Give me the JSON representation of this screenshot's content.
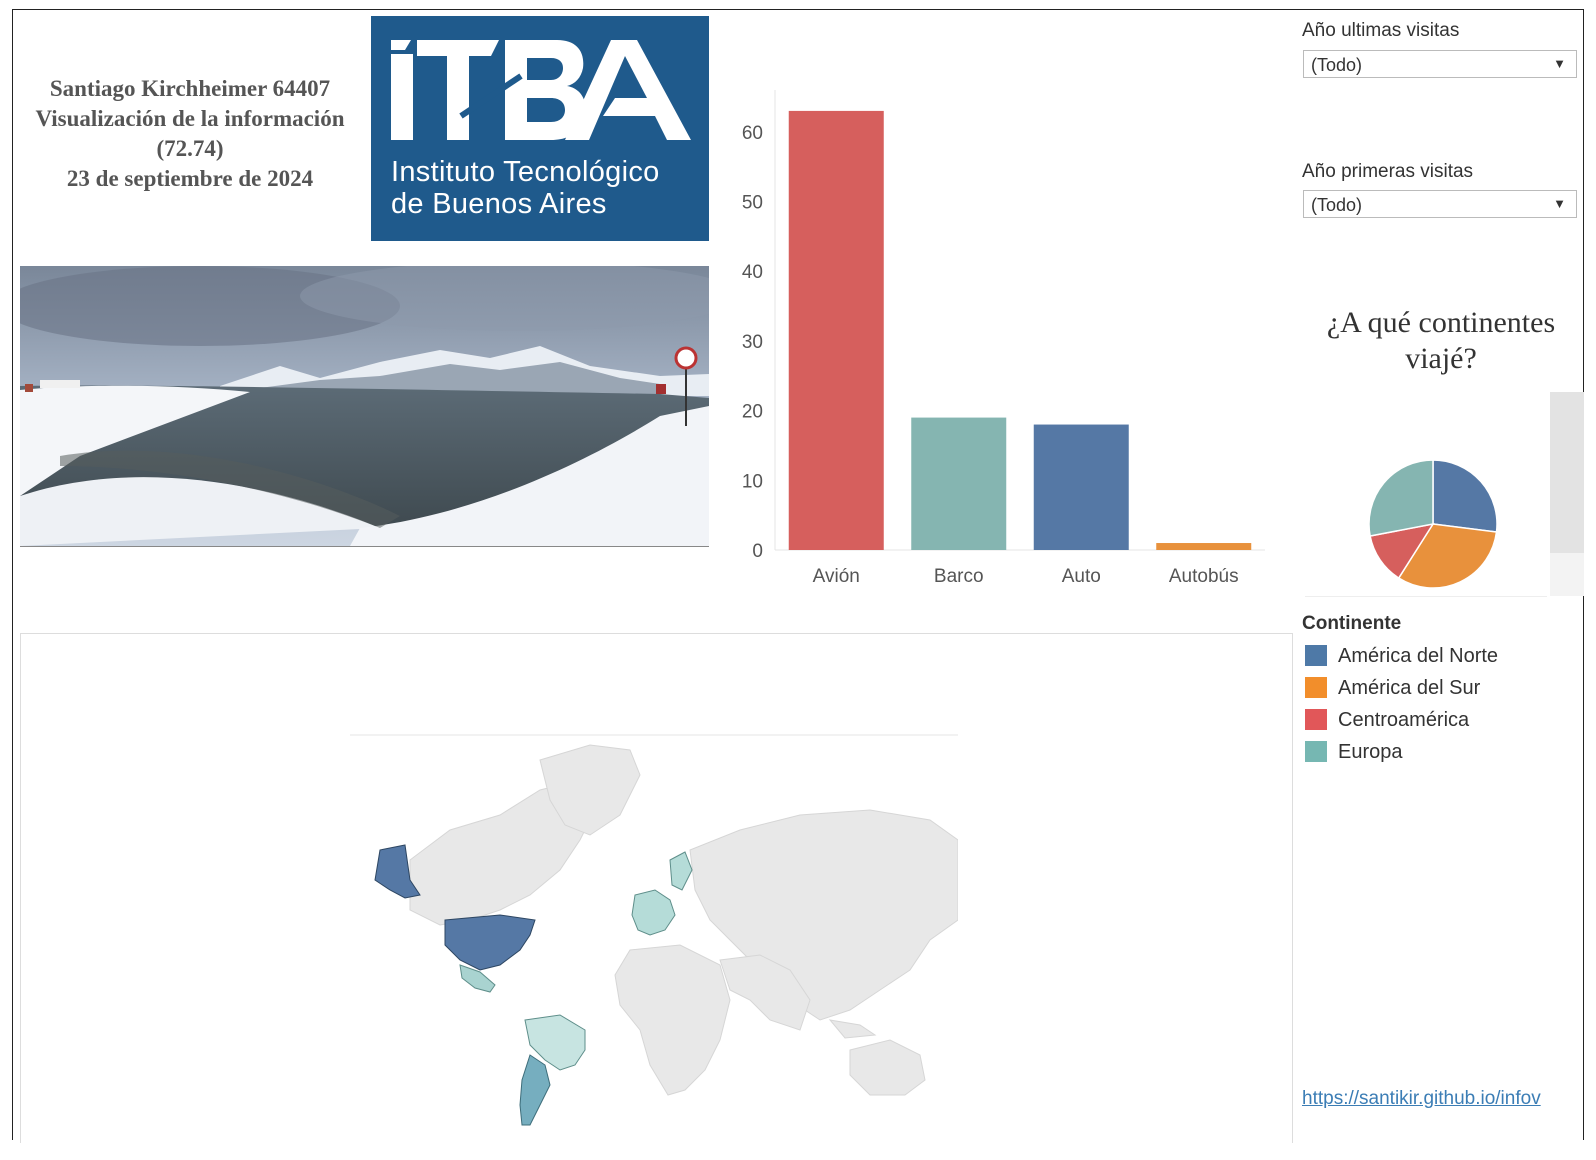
{
  "header": {
    "line1": "Santiago Kirchheimer 64407",
    "line2": "Visualización de la información",
    "line3": "(72.74)",
    "line4": "23 de septiembre de 2024"
  },
  "logo": {
    "brand": "ITBA",
    "subtitle_line1": "Instituto Tecnológico",
    "subtitle_line2": "de Buenos Aires",
    "background": "#1f5a8c"
  },
  "filters": {
    "last_visits": {
      "label": "Año ultimas visitas",
      "value": "(Todo)"
    },
    "first_visits": {
      "label": "Año primeras visitas",
      "value": "(Todo)"
    }
  },
  "pie_title": "¿A qué continentes viajé?",
  "legend": {
    "title": "Continente",
    "items": [
      {
        "label": "América del Norte",
        "color": "#4e79a7"
      },
      {
        "label": "América del Sur",
        "color": "#f28e2b"
      },
      {
        "label": "Centroamérica",
        "color": "#e15759"
      },
      {
        "label": "Europa",
        "color": "#76b7b2"
      }
    ]
  },
  "link_text": "https://santikir.github.io/infov",
  "chart_data": [
    {
      "type": "bar",
      "categories": [
        "Avión",
        "Barco",
        "Auto",
        "Autobús"
      ],
      "values": [
        63,
        19,
        18,
        1
      ],
      "colors": [
        "#d65f5d",
        "#85b5b1",
        "#5578a5",
        "#e8913c"
      ],
      "yticks": [
        0,
        10,
        20,
        30,
        40,
        50,
        60
      ],
      "ylim": [
        0,
        66
      ],
      "grid": false
    },
    {
      "type": "pie",
      "labels": [
        "América del Norte",
        "América del Sur",
        "Centroamérica",
        "Europa"
      ],
      "values": [
        27,
        32,
        13,
        28
      ],
      "colors": [
        "#5578a5",
        "#e8913c",
        "#d65f5d",
        "#85b5b1"
      ]
    }
  ],
  "map": {
    "type": "choropleth",
    "highlighted": [
      {
        "region": "Estados Unidos",
        "continent": "América del Norte",
        "color": "#5578a5"
      },
      {
        "region": "Alaska",
        "continent": "América del Norte",
        "color": "#5578a5"
      },
      {
        "region": "México",
        "continent": "Centroamérica",
        "color": "#a9d3d0"
      },
      {
        "region": "Brasil",
        "continent": "América del Sur",
        "color": "#c7e4e1"
      },
      {
        "region": "Argentina",
        "continent": "América del Sur",
        "color": "#76aebf"
      },
      {
        "region": "Europa",
        "continent": "Europa",
        "color": "#b5dcd8"
      }
    ]
  }
}
